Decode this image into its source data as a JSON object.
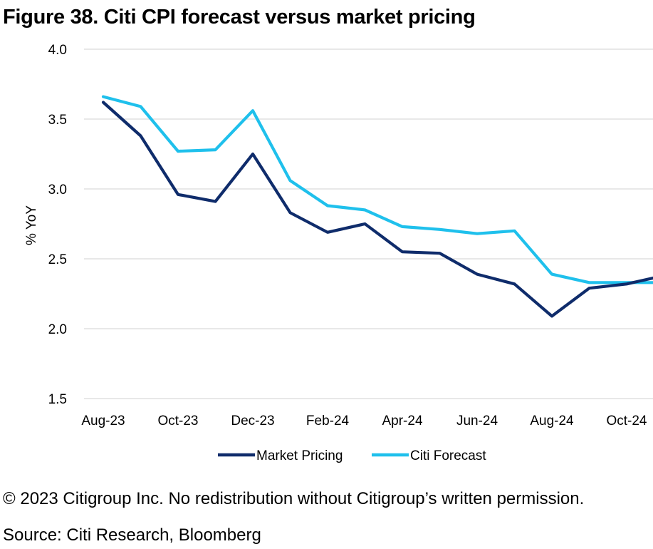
{
  "figure": {
    "title": "Figure 38. Citi CPI forecast versus market pricing",
    "copyright": "© 2023 Citigroup Inc. No redistribution without Citigroup’s written permission.",
    "source": "Source: Citi Research, Bloomberg"
  },
  "chart_data": {
    "type": "line",
    "title": "",
    "xlabel": "",
    "ylabel": "% YoY",
    "ylim": [
      1.5,
      4.0
    ],
    "yticks": [
      "1.5",
      "2.0",
      "2.5",
      "3.0",
      "3.5",
      "4.0"
    ],
    "xticks": [
      "Aug-23",
      "Oct-23",
      "Dec-23",
      "Feb-24",
      "Apr-24",
      "Jun-24",
      "Aug-24",
      "Oct-24"
    ],
    "x": [
      "Aug-23",
      "Sep-23",
      "Oct-23",
      "Nov-23",
      "Dec-23",
      "Jan-24",
      "Feb-24",
      "Mar-24",
      "Apr-24",
      "May-24",
      "Jun-24",
      "Jul-24",
      "Aug-24",
      "Sep-24",
      "Oct-24",
      "Nov-24"
    ],
    "grid": true,
    "legend_position": "bottom",
    "series": [
      {
        "name": "Market Pricing",
        "color": "#0f2c6b",
        "values": [
          3.62,
          3.38,
          2.96,
          2.91,
          3.25,
          2.83,
          2.69,
          2.75,
          2.55,
          2.54,
          2.39,
          2.32,
          2.09,
          2.29,
          2.32,
          2.38
        ]
      },
      {
        "name": "Citi Forecast",
        "color": "#1fc0ec",
        "values": [
          3.66,
          3.59,
          3.27,
          3.28,
          3.56,
          3.06,
          2.88,
          2.85,
          2.73,
          2.71,
          2.68,
          2.7,
          2.39,
          2.33,
          2.33,
          2.33
        ]
      }
    ]
  }
}
